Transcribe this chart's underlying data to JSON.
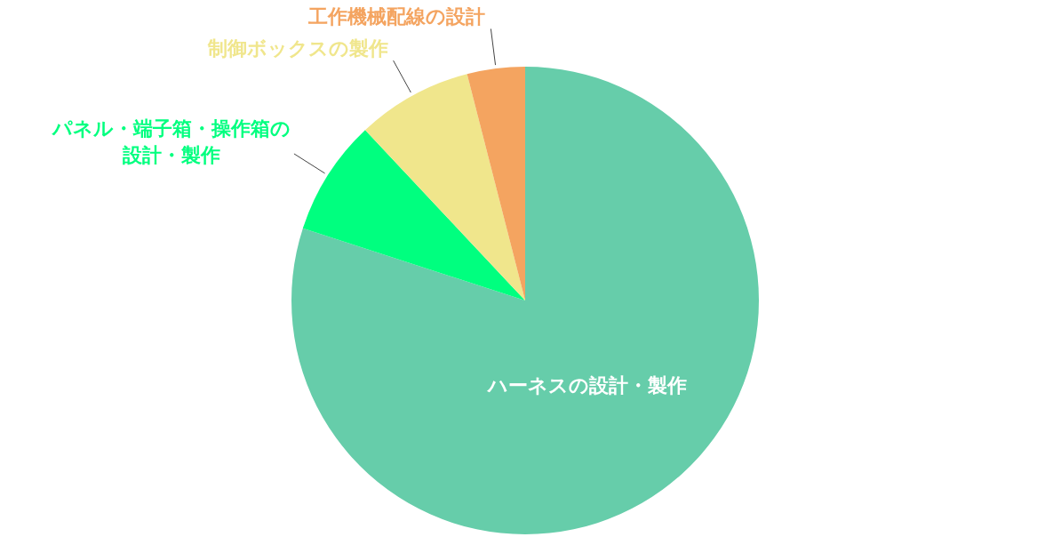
{
  "chart_data": {
    "type": "pie",
    "categories": [
      "ハーネスの設計・製作",
      "パネル・端子箱・操作箱の設計・製作",
      "制御ボックスの製作",
      "工作機械配線の設計"
    ],
    "values": [
      80,
      8,
      8,
      4
    ],
    "colors": [
      "#66cdaa",
      "#00ff7f",
      "#f0e68c",
      "#f4a460"
    ]
  }
}
